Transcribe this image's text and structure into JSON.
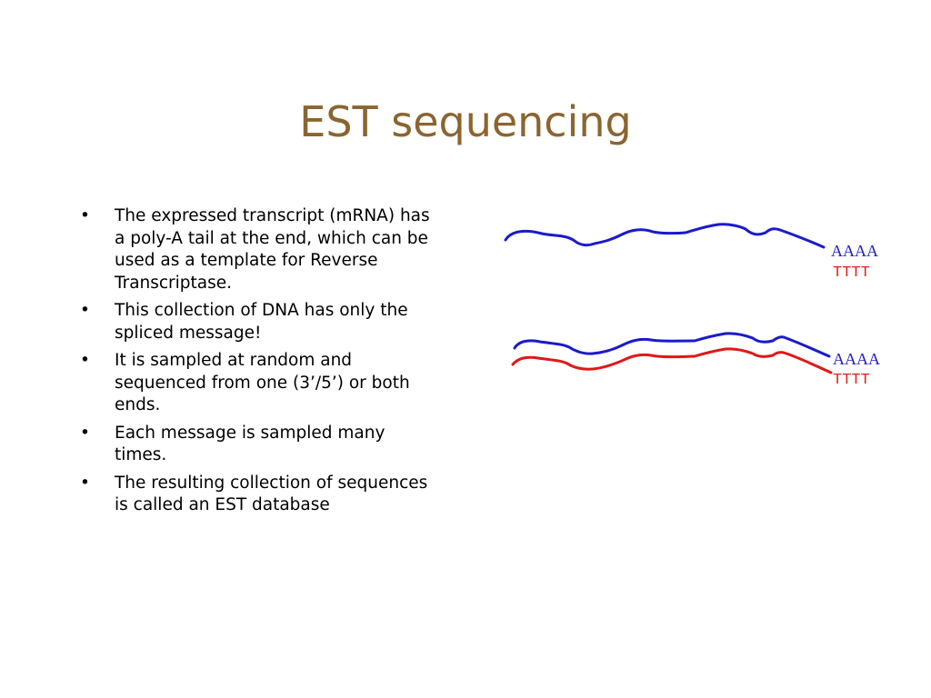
{
  "title": "EST sequencing",
  "bullets": [
    {
      "marker": "•",
      "text": "The expressed transcript (mRNA) has a poly-A tail at the end, which can be used as a template for Reverse Transcriptase."
    },
    {
      "marker": "•",
      "text": "This collection of DNA has only the spliced message!"
    },
    {
      "marker": "•",
      "text": "It is sampled at random and sequenced from one (3’/5’) or both ends."
    },
    {
      "marker": "•",
      "text": "Each message is sampled many times."
    },
    {
      "marker": "•",
      "text": "The resulting collection of sequences is called an EST database"
    }
  ],
  "diagram": {
    "mrna": {
      "tail": "AAAA",
      "complement": "TTTT",
      "color": "#1a1acc"
    },
    "cdna_pair": {
      "tail": "AAAA",
      "complement": "TTTT",
      "strand_color": "#1a1acc",
      "copy_color": "#e01818"
    }
  }
}
